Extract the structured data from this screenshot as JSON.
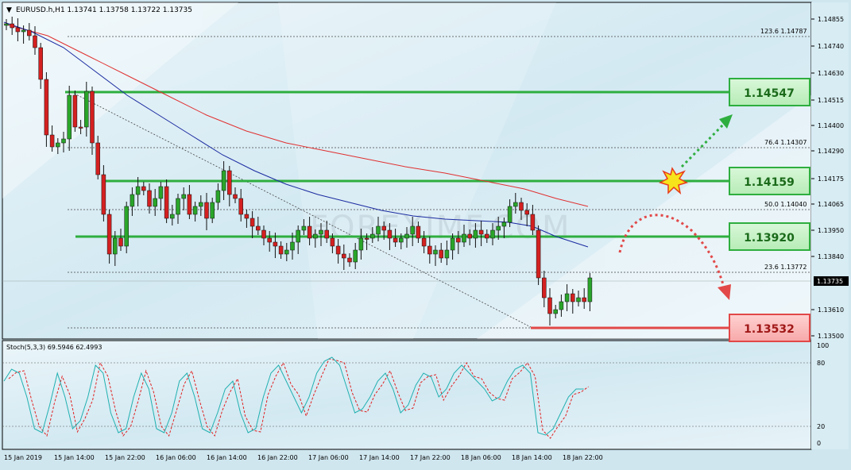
{
  "header": {
    "symbol_info": "EURUSD.h,H1  1.13741 1.13758 1.13722 1.13735"
  },
  "price_axis": {
    "ticks": [
      "1.14855",
      "1.14740",
      "1.14630",
      "1.14515",
      "1.14400",
      "1.14290",
      "1.14175",
      "1.14065",
      "1.13950",
      "1.13840",
      "1.13610",
      "1.13500"
    ],
    "current_price": "1.13735"
  },
  "fib_labels": [
    {
      "text": "123.6   1.14787"
    },
    {
      "text": "76.4   1.14307"
    },
    {
      "text": "50.0   1.14040"
    },
    {
      "text": "23.6   1.13772"
    }
  ],
  "level_boxes": [
    {
      "value": "1.14547",
      "color": "#2eae3f"
    },
    {
      "value": "1.14159",
      "color": "#2eae3f"
    },
    {
      "value": "1.13920",
      "color": "#2eae3f"
    },
    {
      "value": "1.13532",
      "color": "#e24848"
    }
  ],
  "watermark": "FOREXIMF.COM",
  "oscillator": {
    "label": "Stoch(5,3,3) 69.5946 62.4993",
    "ticks": [
      "100",
      "80",
      "20",
      "0"
    ]
  },
  "time_axis": {
    "labels": [
      "15 Jan 2019",
      "15 Jan 14:00",
      "15 Jan 22:00",
      "16 Jan 06:00",
      "16 Jan 14:00",
      "16 Jan 22:00",
      "17 Jan 06:00",
      "17 Jan 14:00",
      "17 Jan 22:00",
      "18 Jan 06:00",
      "18 Jan 14:00",
      "18 Jan 22:00"
    ]
  },
  "colors": {
    "bull_candle": "#2aa52a",
    "bear_candle": "#d42020",
    "ma_fast": "#1a2aa0",
    "ma_slow": "#e03030",
    "stoch_main": "#20b0b0",
    "stoch_signal": "#e02020"
  }
}
